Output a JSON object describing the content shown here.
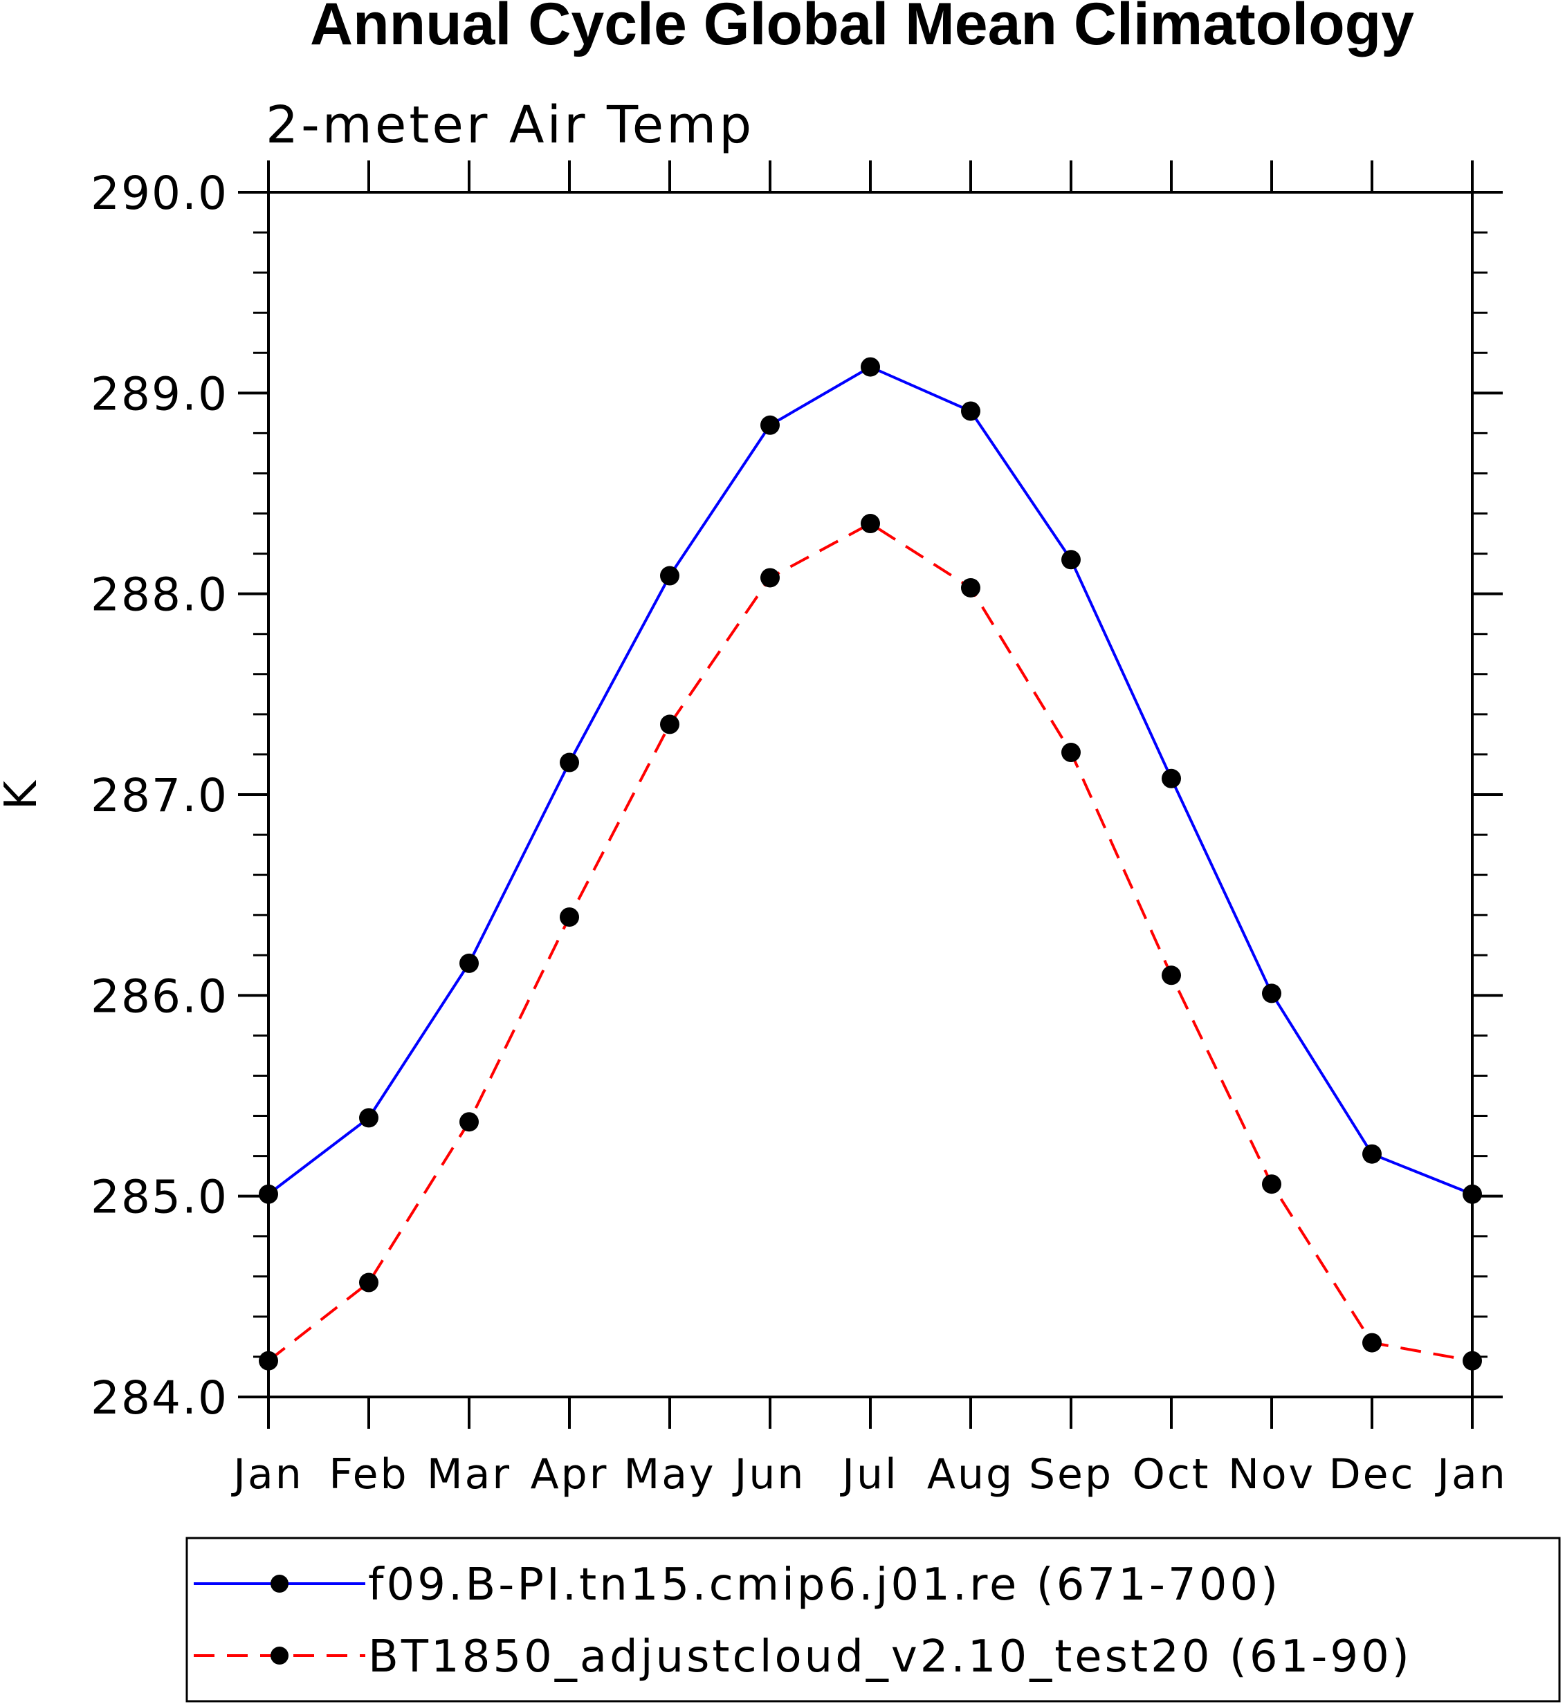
{
  "chart_data": {
    "type": "line",
    "title": "Annual Cycle Global Mean Climatology",
    "subtitle": "2-meter Air Temp",
    "xlabel": "",
    "ylabel": "K",
    "categories": [
      "Jan",
      "Feb",
      "Mar",
      "Apr",
      "May",
      "Jun",
      "Jul",
      "Aug",
      "Sep",
      "Oct",
      "Nov",
      "Dec",
      "Jan"
    ],
    "y_tick_labels": [
      "284.0",
      "285.0",
      "286.0",
      "287.0",
      "288.0",
      "289.0",
      "290.0"
    ],
    "ylim": [
      284.0,
      290.0
    ],
    "y_major_step": 1.0,
    "y_minor_step": 0.2,
    "legend_position": "bottom",
    "series": [
      {
        "name": "f09.B-PI.tn15.cmip6.j01.re (671-700)",
        "color": "#0000ff",
        "style": "solid",
        "marker": "filled-circle",
        "values": [
          285.01,
          285.39,
          286.16,
          287.16,
          288.09,
          288.84,
          289.13,
          288.91,
          288.17,
          287.08,
          286.01,
          285.21,
          285.01
        ]
      },
      {
        "name": "BT1850_adjustcloud_v2.10_test20 (61-90)",
        "color": "#ff0000",
        "style": "dashed",
        "marker": "filled-circle",
        "values": [
          284.18,
          284.57,
          285.37,
          286.39,
          287.35,
          288.08,
          288.35,
          288.03,
          287.21,
          286.1,
          285.06,
          284.27,
          284.18
        ]
      }
    ]
  }
}
